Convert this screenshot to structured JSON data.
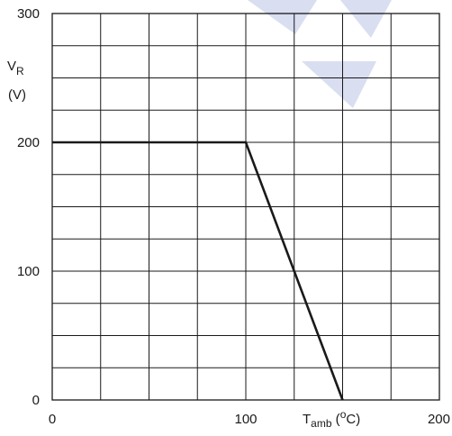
{
  "chart_data": {
    "type": "line",
    "x": [
      0,
      100,
      150
    ],
    "y": [
      200,
      200,
      0
    ],
    "xlim": [
      0,
      200
    ],
    "ylim": [
      0,
      300
    ],
    "x_ticks": [
      "0",
      "100",
      "200"
    ],
    "y_ticks": [
      "0",
      "100",
      "200",
      "300"
    ],
    "xlabel": {
      "main": "T",
      "sub": "amb",
      "unit_open": " (",
      "unit_sup": "o",
      "unit_close": "C)"
    },
    "ylabel": {
      "main": "V",
      "sub": "R",
      "unit": "(V)"
    },
    "grid": true,
    "grid_x_step": 25,
    "grid_y_step": 25,
    "line_color": "#1a1a1a",
    "grid_color": "#1a1a1a",
    "watermark_color": "#d9def1"
  }
}
